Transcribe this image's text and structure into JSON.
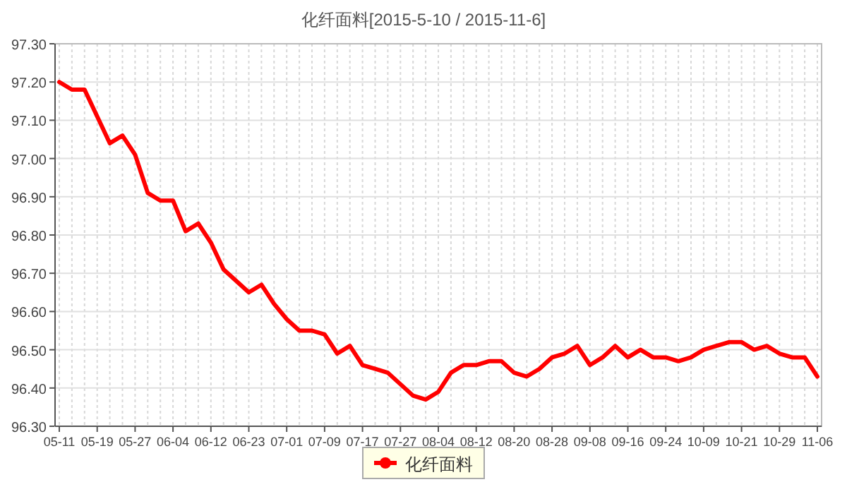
{
  "chart_data": {
    "type": "line",
    "title": "化纤面料[2015-5-10 / 2015-11-6]",
    "categories": [
      "05-11",
      null,
      null,
      "05-19",
      null,
      null,
      "05-27",
      null,
      null,
      "06-04",
      null,
      null,
      "06-12",
      null,
      null,
      "06-23",
      null,
      null,
      "07-01",
      null,
      null,
      "07-09",
      null,
      null,
      "07-17",
      null,
      null,
      "07-27",
      null,
      null,
      "08-04",
      null,
      null,
      "08-12",
      null,
      null,
      "08-20",
      null,
      null,
      "08-28",
      null,
      null,
      "09-08",
      null,
      null,
      "09-16",
      null,
      null,
      "09-24",
      null,
      null,
      "10-09",
      null,
      null,
      "10-21",
      null,
      null,
      "10-29",
      null,
      null,
      "11-06"
    ],
    "series": [
      {
        "name": "化纤面料",
        "color": "#ff0000",
        "values": [
          97.2,
          97.18,
          97.18,
          97.11,
          97.04,
          97.06,
          97.01,
          96.91,
          96.89,
          96.89,
          96.81,
          96.83,
          96.78,
          96.71,
          96.68,
          96.65,
          96.67,
          96.62,
          96.58,
          96.55,
          96.55,
          96.54,
          96.49,
          96.51,
          96.46,
          96.45,
          96.44,
          96.41,
          96.38,
          96.37,
          96.39,
          96.44,
          96.46,
          96.46,
          96.47,
          96.47,
          96.44,
          96.43,
          96.45,
          96.48,
          96.49,
          96.51,
          96.46,
          96.48,
          96.51,
          96.48,
          96.5,
          96.48,
          96.48,
          96.47,
          96.48,
          96.5,
          96.51,
          96.52,
          96.52,
          96.5,
          96.51,
          96.49,
          96.48,
          96.48,
          96.43
        ]
      }
    ],
    "ylim": [
      96.3,
      97.3
    ],
    "yticks": [
      {
        "value": 96.3,
        "label": "96.30"
      },
      {
        "value": 96.4,
        "label": "96.40"
      },
      {
        "value": 96.5,
        "label": "96.50"
      },
      {
        "value": 96.6,
        "label": "96.60"
      },
      {
        "value": 96.7,
        "label": "96.70"
      },
      {
        "value": 96.8,
        "label": "96.80"
      },
      {
        "value": 96.9,
        "label": "96.90"
      },
      {
        "value": 97.0,
        "label": "97.00"
      },
      {
        "value": 97.1,
        "label": "97.10"
      },
      {
        "value": 97.2,
        "label": "97.20"
      },
      {
        "value": 97.3,
        "label": "97.30"
      }
    ],
    "grid": true,
    "legend": "bottom",
    "marker": "none",
    "line_style": "solid"
  }
}
